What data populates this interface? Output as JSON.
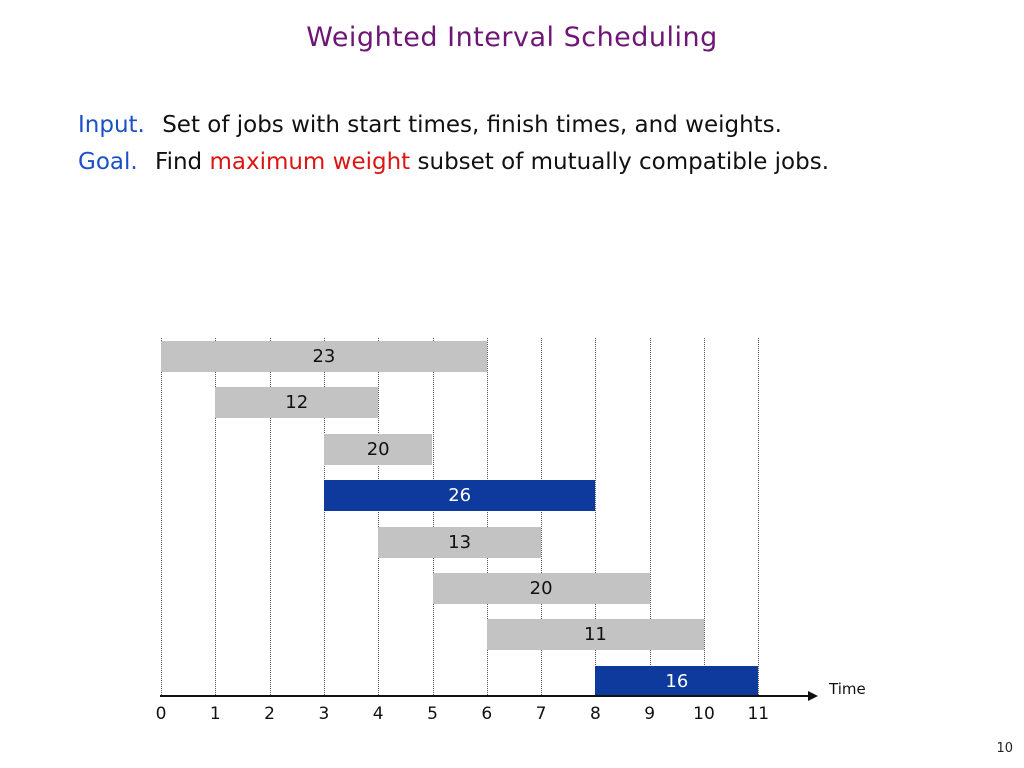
{
  "slide": {
    "title": "Weighted Interval Scheduling",
    "page_number": "10"
  },
  "description": {
    "input_label": "Input.",
    "input_text": "Set of jobs with start times, finish times, and weights.",
    "goal_label": "Goal.",
    "goal_prefix": "Find",
    "goal_highlight": "maximum weight",
    "goal_suffix": "subset of mutually compatible jobs."
  },
  "colors": {
    "title_purple": "#6e1576",
    "label_blue": "#1a50c8",
    "highlight_red": "#dc1414",
    "bar_gray": "#c3c3c3",
    "bar_blue": "#0d3a9c",
    "bar_text_dark": "#111111",
    "bar_text_light": "#ffffff"
  },
  "chart_data": {
    "type": "bar",
    "subtype": "interval-gantt",
    "title": "",
    "xlabel": "Time",
    "ylabel": "",
    "x_range": [
      0,
      11
    ],
    "x_ticks": [
      "0",
      "1",
      "2",
      "3",
      "4",
      "5",
      "6",
      "7",
      "8",
      "9",
      "10",
      "11"
    ],
    "grid": true,
    "jobs": [
      {
        "weight": "23",
        "start": 0,
        "finish": 6,
        "color": "gray"
      },
      {
        "weight": "12",
        "start": 1,
        "finish": 4,
        "color": "gray"
      },
      {
        "weight": "20",
        "start": 3,
        "finish": 5,
        "color": "gray"
      },
      {
        "weight": "26",
        "start": 3,
        "finish": 8,
        "color": "blue"
      },
      {
        "weight": "13",
        "start": 4,
        "finish": 7,
        "color": "gray"
      },
      {
        "weight": "20",
        "start": 5,
        "finish": 9,
        "color": "gray"
      },
      {
        "weight": "11",
        "start": 6,
        "finish": 10,
        "color": "gray"
      },
      {
        "weight": "16",
        "start": 8,
        "finish": 11,
        "color": "blue"
      }
    ]
  }
}
